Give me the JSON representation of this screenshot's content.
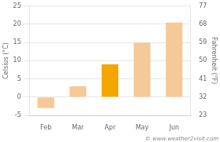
{
  "chart_data": {
    "type": "bar",
    "categories": [
      "Feb",
      "Mar",
      "Apr",
      "May",
      "Jun"
    ],
    "values": [
      -3,
      3,
      9,
      15,
      20.5
    ],
    "colors": [
      "#f5c998",
      "#f5c998",
      "#f5a500",
      "#f5c998",
      "#f5c998"
    ],
    "ylabel": "Celsius (°C)",
    "y2label": "Fahrenheit (°F)",
    "ylim": [
      -5,
      25
    ],
    "yticks": [
      -5,
      0,
      5,
      10,
      15,
      20,
      25
    ],
    "y2lim": [
      23,
      77
    ],
    "y2ticks": [
      23,
      32,
      41,
      50,
      59,
      68,
      77
    ],
    "grid": true,
    "annotations": [
      "© www.weather2visit.com"
    ]
  }
}
